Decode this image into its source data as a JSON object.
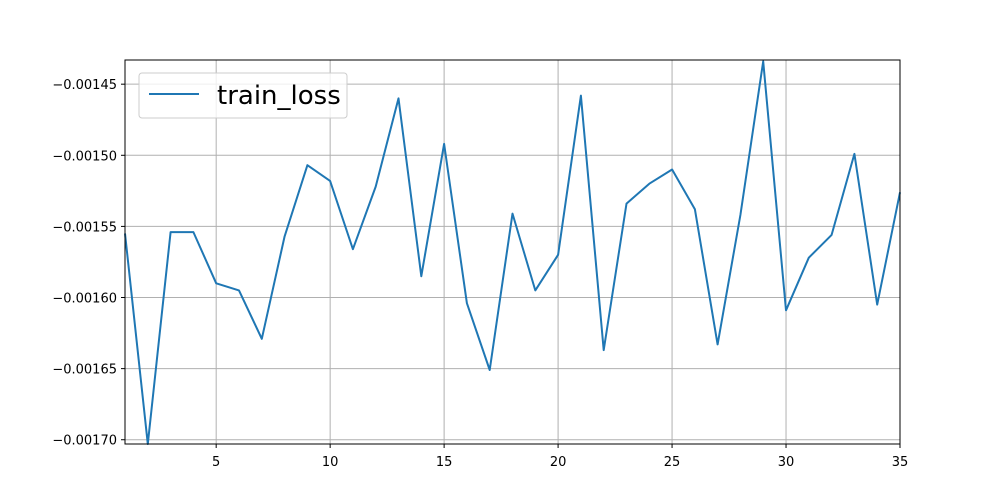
{
  "chart_data": {
    "type": "line",
    "title": "",
    "xlabel": "",
    "ylabel": "",
    "xlim": [
      1,
      35
    ],
    "ylim": [
      -0.001703,
      -0.001433
    ],
    "grid": true,
    "legend_position": "top-left",
    "x_ticks": [
      5,
      10,
      15,
      20,
      25,
      30,
      35
    ],
    "x_tick_labels": [
      "5",
      "10",
      "15",
      "20",
      "25",
      "30",
      "35"
    ],
    "y_ticks": [
      -0.00145,
      -0.0015,
      -0.00155,
      -0.0016,
      -0.00165,
      -0.0017
    ],
    "y_tick_labels": [
      "−0.00145",
      "−0.00150",
      "−0.00155",
      "−0.00160",
      "−0.00165",
      "−0.00170"
    ],
    "series": [
      {
        "name": "train_loss",
        "color": "#1f77b4",
        "x": [
          1,
          2,
          3,
          4,
          5,
          6,
          7,
          8,
          9,
          10,
          11,
          12,
          13,
          14,
          15,
          16,
          17,
          18,
          19,
          20,
          21,
          22,
          23,
          24,
          25,
          26,
          27,
          28,
          29,
          30,
          31,
          32,
          33,
          34,
          35
        ],
        "y": [
          -0.001555,
          -0.001703,
          -0.001554,
          -0.001554,
          -0.00159,
          -0.001595,
          -0.001629,
          -0.001557,
          -0.001507,
          -0.001518,
          -0.001566,
          -0.001522,
          -0.00146,
          -0.001585,
          -0.001492,
          -0.001604,
          -0.001651,
          -0.001541,
          -0.001595,
          -0.00157,
          -0.001458,
          -0.001637,
          -0.001534,
          -0.00152,
          -0.00151,
          -0.001538,
          -0.001633,
          -0.001542,
          -0.001434,
          -0.001609,
          -0.001572,
          -0.001556,
          -0.001499,
          -0.001605,
          -0.001526
        ]
      }
    ]
  }
}
